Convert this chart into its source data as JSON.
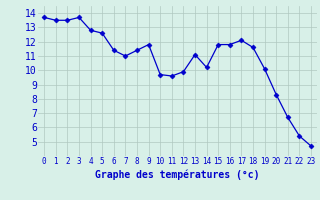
{
  "x": [
    0,
    1,
    2,
    3,
    4,
    5,
    6,
    7,
    8,
    9,
    10,
    11,
    12,
    13,
    14,
    15,
    16,
    17,
    18,
    19,
    20,
    21,
    22,
    23
  ],
  "y": [
    13.7,
    13.5,
    13.5,
    13.7,
    12.8,
    12.6,
    11.4,
    11.0,
    11.4,
    11.8,
    9.7,
    9.6,
    9.9,
    11.1,
    10.2,
    11.8,
    11.8,
    12.1,
    11.6,
    10.1,
    8.3,
    6.7,
    5.4,
    4.7
  ],
  "line_color": "#0000cc",
  "marker": "D",
  "marker_size": 2.5,
  "bg_color": "#d8f0e8",
  "grid_color": "#b0c8c0",
  "xlabel": "Graphe des températures (°c)",
  "xlabel_color": "#0000cc",
  "xlabel_fontsize": 7,
  "tick_color": "#0000cc",
  "ytick_fontsize": 7,
  "xtick_fontsize": 5.5,
  "ylim": [
    4,
    14.5
  ],
  "yticks": [
    5,
    6,
    7,
    8,
    9,
    10,
    11,
    12,
    13,
    14
  ],
  "xlim": [
    -0.5,
    23.5
  ],
  "xticks": [
    0,
    1,
    2,
    3,
    4,
    5,
    6,
    7,
    8,
    9,
    10,
    11,
    12,
    13,
    14,
    15,
    16,
    17,
    18,
    19,
    20,
    21,
    22,
    23
  ]
}
